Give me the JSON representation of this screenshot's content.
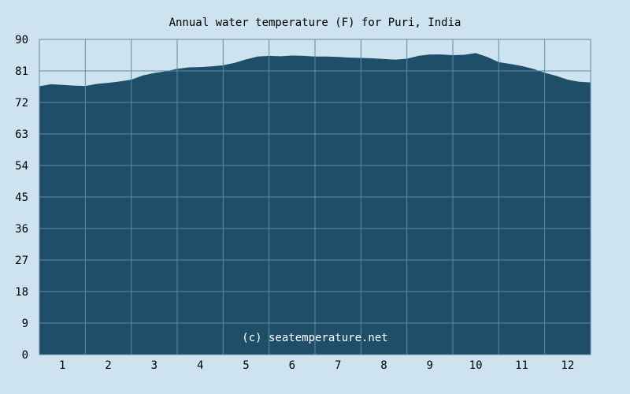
{
  "chart_data": {
    "type": "area",
    "title": "Annual water temperature (F) for Puri, India",
    "watermark": "(c) seatemperature.net",
    "xlabel": "",
    "ylabel": "",
    "x_ticks": [
      "1",
      "2",
      "3",
      "4",
      "5",
      "6",
      "7",
      "8",
      "9",
      "10",
      "11",
      "12"
    ],
    "y_ticks": [
      "0",
      "9",
      "18",
      "27",
      "36",
      "45",
      "54",
      "63",
      "72",
      "81",
      "90"
    ],
    "ylim": [
      0,
      90
    ],
    "xlim": [
      0.5,
      12.5
    ],
    "grid": true,
    "colors": {
      "background": "#cde3ef",
      "plot_background": "#cde3ef",
      "area_fill": "#1f4e69",
      "gridline": "#5f8aa3",
      "watermark": "#ffffff"
    },
    "x": [
      0.5,
      0.75,
      1.0,
      1.25,
      1.5,
      1.75,
      2.0,
      2.25,
      2.5,
      2.75,
      3.0,
      3.25,
      3.5,
      3.75,
      4.0,
      4.25,
      4.5,
      4.75,
      5.0,
      5.25,
      5.5,
      5.75,
      6.0,
      6.25,
      6.5,
      6.75,
      7.0,
      7.25,
      7.5,
      7.75,
      8.0,
      8.25,
      8.5,
      8.75,
      9.0,
      9.25,
      9.5,
      9.75,
      10.0,
      10.25,
      10.5,
      10.75,
      11.0,
      11.25,
      11.5,
      11.75,
      12.0,
      12.25,
      12.5
    ],
    "values": [
      76.6,
      77.2,
      77.0,
      76.8,
      76.7,
      77.3,
      77.6,
      78.0,
      78.5,
      79.7,
      80.4,
      80.9,
      81.6,
      82.0,
      82.1,
      82.3,
      82.6,
      83.3,
      84.3,
      85.1,
      85.3,
      85.2,
      85.4,
      85.3,
      85.1,
      85.1,
      85.0,
      84.8,
      84.7,
      84.6,
      84.4,
      84.2,
      84.5,
      85.3,
      85.7,
      85.7,
      85.5,
      85.6,
      86.1,
      85.0,
      83.5,
      83.0,
      82.4,
      81.6,
      80.5,
      79.6,
      78.5,
      77.9,
      77.7
    ]
  }
}
